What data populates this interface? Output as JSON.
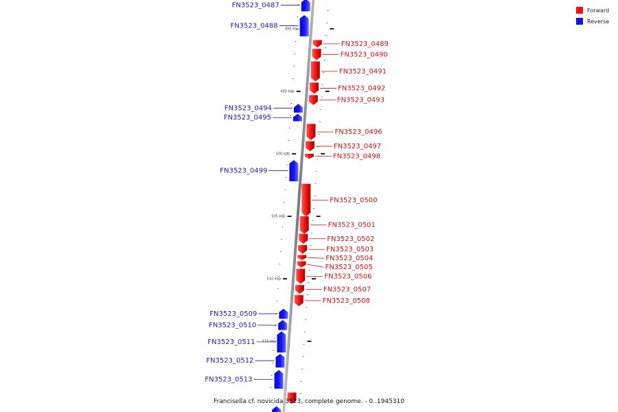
{
  "title": "Francisella cf. novicida 3523, complete genome. - 0..1945310",
  "legend": [
    {
      "label": "Forward",
      "color": "#ee1111"
    },
    {
      "label": "Reverse",
      "color": "#1111ee"
    }
  ],
  "colors": {
    "forward": "#ee1111",
    "reverse": "#1111ee",
    "forward_label": "#cc1111",
    "reverse_label": "#1a1aa8",
    "backbone": "#888888"
  },
  "ticks": [
    {
      "kbp": 490,
      "label": "490 kbp"
    },
    {
      "kbp": 495,
      "label": "495 kbp"
    },
    {
      "kbp": 500,
      "label": "500 kbp"
    },
    {
      "kbp": 505,
      "label": "505 kbp"
    },
    {
      "kbp": 510,
      "label": "510 kbp"
    },
    {
      "kbp": 515,
      "label": "515 kbp"
    }
  ],
  "genes": [
    {
      "name": "FN3523_0487",
      "strand": "reverse",
      "start_kbp": 487.6,
      "end_kbp": 488.6
    },
    {
      "name": "FN3523_0488",
      "strand": "reverse",
      "start_kbp": 488.9,
      "end_kbp": 490.6
    },
    {
      "name": "FN3523_0489",
      "strand": "forward",
      "start_kbp": 490.9,
      "end_kbp": 491.5
    },
    {
      "name": "FN3523_0490",
      "strand": "forward",
      "start_kbp": 491.6,
      "end_kbp": 492.5
    },
    {
      "name": "FN3523_0491",
      "strand": "forward",
      "start_kbp": 492.6,
      "end_kbp": 494.2
    },
    {
      "name": "FN3523_0492",
      "strand": "forward",
      "start_kbp": 494.3,
      "end_kbp": 495.2
    },
    {
      "name": "FN3523_0493",
      "strand": "forward",
      "start_kbp": 495.3,
      "end_kbp": 496.1
    },
    {
      "name": "FN3523_0494",
      "strand": "reverse",
      "start_kbp": 496.0,
      "end_kbp": 496.7
    },
    {
      "name": "FN3523_0495",
      "strand": "reverse",
      "start_kbp": 496.8,
      "end_kbp": 497.4
    },
    {
      "name": "FN3523_0496",
      "strand": "forward",
      "start_kbp": 497.6,
      "end_kbp": 498.9
    },
    {
      "name": "FN3523_0497",
      "strand": "forward",
      "start_kbp": 499.0,
      "end_kbp": 499.8
    },
    {
      "name": "FN3523_0498",
      "strand": "forward",
      "start_kbp": 500.0,
      "end_kbp": 500.4
    },
    {
      "name": "FN3523_0499",
      "strand": "reverse",
      "start_kbp": 500.5,
      "end_kbp": 502.2
    },
    {
      "name": "FN3523_0500",
      "strand": "forward",
      "start_kbp": 502.4,
      "end_kbp": 505.0
    },
    {
      "name": "FN3523_0501",
      "strand": "forward",
      "start_kbp": 505.0,
      "end_kbp": 506.4
    },
    {
      "name": "FN3523_0502",
      "strand": "forward",
      "start_kbp": 506.4,
      "end_kbp": 507.2
    },
    {
      "name": "FN3523_0503",
      "strand": "forward",
      "start_kbp": 507.3,
      "end_kbp": 508.0
    },
    {
      "name": "FN3523_0504",
      "strand": "forward",
      "start_kbp": 508.1,
      "end_kbp": 508.5
    },
    {
      "name": "FN3523_0505",
      "strand": "forward",
      "start_kbp": 508.6,
      "end_kbp": 509.1
    },
    {
      "name": "FN3523_0506",
      "strand": "forward",
      "start_kbp": 509.2,
      "end_kbp": 510.4
    },
    {
      "name": "FN3523_0507",
      "strand": "forward",
      "start_kbp": 510.5,
      "end_kbp": 511.2
    },
    {
      "name": "FN3523_0508",
      "strand": "forward",
      "start_kbp": 511.3,
      "end_kbp": 512.2
    },
    {
      "name": "FN3523_0509",
      "strand": "reverse",
      "start_kbp": 512.4,
      "end_kbp": 513.2
    },
    {
      "name": "FN3523_0510",
      "strand": "reverse",
      "start_kbp": 513.3,
      "end_kbp": 514.1
    },
    {
      "name": "FN3523_0511",
      "strand": "reverse",
      "start_kbp": 514.2,
      "end_kbp": 515.9
    },
    {
      "name": "FN3523_0512",
      "strand": "reverse",
      "start_kbp": 516.0,
      "end_kbp": 517.1
    },
    {
      "name": "FN3523_0513",
      "strand": "reverse",
      "start_kbp": 517.3,
      "end_kbp": 518.8
    },
    {
      "name": "",
      "strand": "forward",
      "start_kbp": 519.1,
      "end_kbp": 520.0
    },
    {
      "name": "",
      "strand": "reverse",
      "start_kbp": 520.2,
      "end_kbp": 521.0
    }
  ]
}
